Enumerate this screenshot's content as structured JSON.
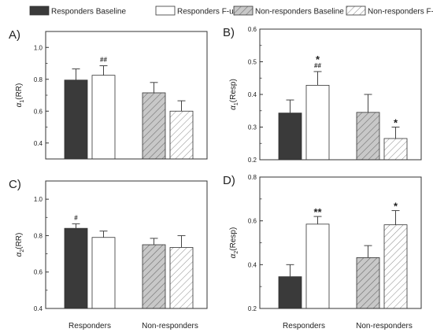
{
  "legend": [
    {
      "label": "Responders Baseline",
      "style": "dark"
    },
    {
      "label": "Responders F-up",
      "style": "white"
    },
    {
      "label": "Non-responders Baseline",
      "style": "hatch-gray"
    },
    {
      "label": "Non-responders F-up",
      "style": "hatch-white"
    }
  ],
  "colors": {
    "dark": "#3a3a3a",
    "hatch_gray_bg": "#c8c8c8",
    "hatch_line": "#7a7a7a",
    "axis": "#333333",
    "error": "#444444"
  },
  "chart_data": [
    {
      "type": "bar",
      "panel": "A)",
      "ylabel": "α1(RR)",
      "ylabel_main": "α",
      "ylabel_sub": "1",
      "ylabel_rest": "(RR)",
      "ylim": [
        0.3,
        1.1
      ],
      "yticks": [
        "0.4",
        "0.6",
        "0.8",
        "1.0"
      ],
      "ytick_values": [
        0.4,
        0.6,
        0.8,
        1.0
      ],
      "categories": [
        "Responders",
        "Non-responders"
      ],
      "show_xticklabels": false,
      "series": [
        {
          "name": "Responders Baseline",
          "values": [
            0.795,
            null
          ],
          "errors": [
            0.07,
            null
          ],
          "annotations": [
            "",
            ""
          ]
        },
        {
          "name": "Responders F-up",
          "values": [
            0.825,
            null
          ],
          "errors": [
            0.06,
            null
          ],
          "annotations": [
            "##",
            ""
          ]
        },
        {
          "name": "Non-responders Baseline",
          "values": [
            null,
            0.715
          ],
          "errors": [
            null,
            0.065
          ],
          "annotations": [
            "",
            ""
          ]
        },
        {
          "name": "Non-responders F-up",
          "values": [
            null,
            0.6
          ],
          "errors": [
            null,
            0.065
          ],
          "annotations": [
            "",
            ""
          ]
        }
      ]
    },
    {
      "type": "bar",
      "panel": "B)",
      "ylabel": "α1(Resp)",
      "ylabel_main": "α",
      "ylabel_sub": "1",
      "ylabel_rest": "(Resp)",
      "ylim": [
        0.2,
        0.6
      ],
      "yticks": [
        "0.2",
        "0.3",
        "0.4",
        "0.5",
        "0.6"
      ],
      "ytick_values": [
        0.2,
        0.3,
        0.4,
        0.5,
        0.6
      ],
      "categories": [
        "Responders",
        "Non-responders"
      ],
      "show_xticklabels": false,
      "series": [
        {
          "name": "Responders Baseline",
          "values": [
            0.343,
            null
          ],
          "errors": [
            0.04,
            null
          ],
          "annotations": [
            "",
            ""
          ]
        },
        {
          "name": "Responders F-up",
          "values": [
            0.428,
            null
          ],
          "errors": [
            0.042,
            null
          ],
          "annotations": [
            "*|##",
            ""
          ]
        },
        {
          "name": "Non-responders Baseline",
          "values": [
            null,
            0.345
          ],
          "errors": [
            null,
            0.055
          ],
          "annotations": [
            "",
            ""
          ]
        },
        {
          "name": "Non-responders F-up",
          "values": [
            null,
            0.265
          ],
          "errors": [
            null,
            0.035
          ],
          "annotations": [
            "",
            "*"
          ]
        }
      ]
    },
    {
      "type": "bar",
      "panel": "C)",
      "ylabel": "α2(RR)",
      "ylabel_main": "α",
      "ylabel_sub": "2",
      "ylabel_rest": "(RR)",
      "ylim": [
        0.4,
        1.1
      ],
      "yticks": [
        "0.4",
        "0.6",
        "0.8",
        "1.0"
      ],
      "ytick_values": [
        0.4,
        0.6,
        0.8,
        1.0
      ],
      "categories": [
        "Responders",
        "Non-responders"
      ],
      "show_xticklabels": true,
      "series": [
        {
          "name": "Responders Baseline",
          "values": [
            0.84,
            null
          ],
          "errors": [
            0.025,
            null
          ],
          "annotations": [
            "#",
            ""
          ]
        },
        {
          "name": "Responders F-up",
          "values": [
            0.79,
            null
          ],
          "errors": [
            0.035,
            null
          ],
          "annotations": [
            "",
            ""
          ]
        },
        {
          "name": "Non-responders Baseline",
          "values": [
            null,
            0.75
          ],
          "errors": [
            null,
            0.035
          ],
          "annotations": [
            "",
            ""
          ]
        },
        {
          "name": "Non-responders F-up",
          "values": [
            null,
            0.735
          ],
          "errors": [
            null,
            0.065
          ],
          "annotations": [
            "",
            ""
          ]
        }
      ]
    },
    {
      "type": "bar",
      "panel": "D)",
      "ylabel": "α2(Resp)",
      "ylabel_main": "α",
      "ylabel_sub": "2",
      "ylabel_rest": "(Resp)",
      "ylim": [
        0.2,
        0.8
      ],
      "yticks": [
        "0.2",
        "0.4",
        "0.6",
        "0.8"
      ],
      "ytick_values": [
        0.2,
        0.4,
        0.6,
        0.8
      ],
      "categories": [
        "Responders",
        "Non-responders"
      ],
      "show_xticklabels": true,
      "series": [
        {
          "name": "Responders Baseline",
          "values": [
            0.345,
            null
          ],
          "errors": [
            0.055,
            null
          ],
          "annotations": [
            "",
            ""
          ]
        },
        {
          "name": "Responders F-up",
          "values": [
            0.585,
            null
          ],
          "errors": [
            0.035,
            null
          ],
          "annotations": [
            "**",
            ""
          ]
        },
        {
          "name": "Non-responders Baseline",
          "values": [
            null,
            0.432
          ],
          "errors": [
            null,
            0.055
          ],
          "annotations": [
            "",
            ""
          ]
        },
        {
          "name": "Non-responders F-up",
          "values": [
            null,
            0.582
          ],
          "errors": [
            null,
            0.065
          ],
          "annotations": [
            "",
            "*"
          ]
        }
      ]
    }
  ]
}
